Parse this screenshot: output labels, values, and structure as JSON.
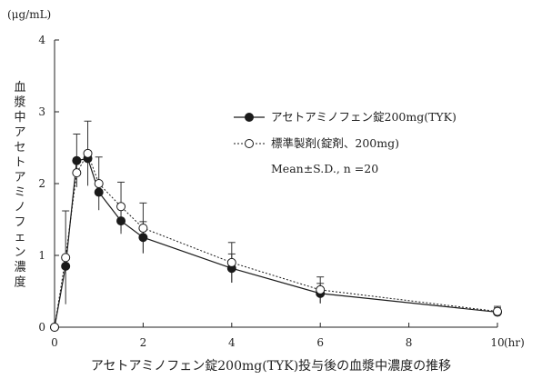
{
  "chart_data": {
    "type": "line",
    "title": "",
    "caption": "アセトアミノフェン錠200mg(TYK)投与後の血漿中濃度の推移",
    "y_unit": "(μg/mL)",
    "ylabel": "血漿中アセトアミノフェン濃度",
    "x_unit": "(hr)",
    "xlim": [
      0,
      10
    ],
    "ylim": [
      0,
      4
    ],
    "xticks": [
      0,
      2,
      4,
      6,
      8,
      10
    ],
    "yticks": [
      0,
      1,
      2,
      3,
      4
    ],
    "grid": false,
    "legend_position": "top-right",
    "legend_note": "Mean±S.D., n =20",
    "series": [
      {
        "name": "アセトアミノフェン錠200mg(TYK)",
        "marker": "filled-circle",
        "line_style": "solid",
        "color": "#1a1a1a",
        "x": [
          0,
          0.25,
          0.5,
          0.75,
          1,
          1.5,
          2,
          4,
          6,
          10
        ],
        "y": [
          0,
          0.85,
          2.32,
          2.35,
          1.88,
          1.48,
          1.25,
          0.82,
          0.47,
          0.21
        ],
        "sd": [
          0,
          0,
          0.37,
          0,
          0,
          0.18,
          0.22,
          0.2,
          0.14,
          0.06
        ]
      },
      {
        "name": "標準製剤(錠剤、200mg)",
        "marker": "open-circle",
        "line_style": "dashed",
        "color": "#1a1a1a",
        "x": [
          0,
          0.25,
          0.5,
          0.75,
          1,
          1.5,
          2,
          4,
          6,
          10
        ],
        "y": [
          0,
          0.97,
          2.15,
          2.42,
          2.0,
          1.68,
          1.38,
          0.9,
          0.52,
          0.22
        ],
        "sd": [
          0,
          0.65,
          0,
          0.45,
          0.37,
          0.34,
          0.35,
          0.28,
          0.18,
          0.07
        ]
      }
    ]
  }
}
